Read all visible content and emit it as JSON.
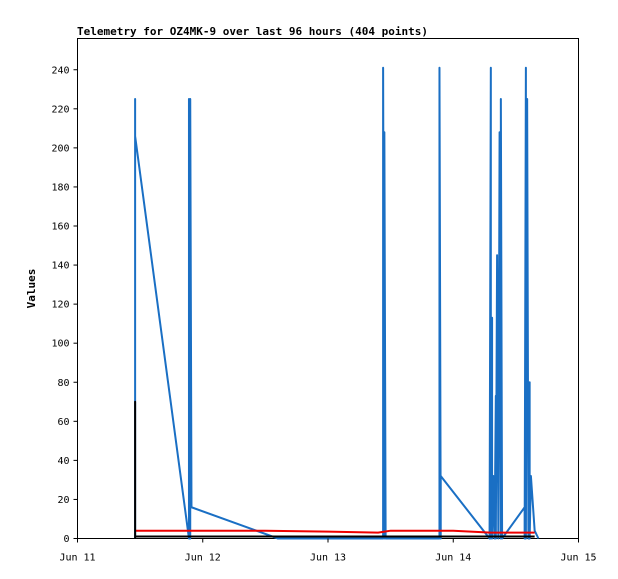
{
  "chart_data": {
    "type": "line",
    "title": "Telemetry for OZ4MK-9 over last 96 hours (404 points)",
    "xlabel": "",
    "ylabel": "Values",
    "x_axis": {
      "type": "time",
      "min": "Jun 11",
      "max": "Jun 15",
      "min_day": 11,
      "max_day": 15,
      "ticks": [
        "Jun 11",
        "Jun 12",
        "Jun 13",
        "Jun 14",
        "Jun 15"
      ]
    },
    "ylim": [
      0,
      256
    ],
    "yticks": [
      0,
      20,
      40,
      60,
      80,
      100,
      120,
      140,
      160,
      180,
      200,
      220,
      240
    ],
    "grid": false,
    "legend": "none",
    "series": [
      {
        "color": "#1a6fc4",
        "points": [
          [
            11.46,
            0
          ],
          [
            11.46,
            225
          ],
          [
            11.46,
            70
          ],
          [
            11.46,
            206
          ],
          [
            11.89,
            0
          ],
          [
            11.89,
            225
          ],
          [
            11.9,
            0
          ],
          [
            11.9,
            225
          ],
          [
            11.91,
            16
          ],
          [
            12.6,
            0
          ],
          [
            13.44,
            0
          ],
          [
            13.44,
            241
          ],
          [
            13.45,
            0
          ],
          [
            13.45,
            208
          ],
          [
            13.46,
            0
          ],
          [
            13.89,
            0
          ],
          [
            13.89,
            241
          ],
          [
            13.9,
            0
          ],
          [
            13.9,
            32
          ],
          [
            14.29,
            0
          ],
          [
            14.3,
            241
          ],
          [
            14.3,
            0
          ],
          [
            14.31,
            113
          ],
          [
            14.31,
            0
          ],
          [
            14.32,
            32
          ],
          [
            14.33,
            0
          ],
          [
            14.34,
            73
          ],
          [
            14.34,
            0
          ],
          [
            14.35,
            145
          ],
          [
            14.36,
            0
          ],
          [
            14.37,
            208
          ],
          [
            14.38,
            0
          ],
          [
            14.38,
            225
          ],
          [
            14.39,
            0
          ],
          [
            14.57,
            16
          ],
          [
            14.57,
            0
          ],
          [
            14.58,
            241
          ],
          [
            14.58,
            0
          ],
          [
            14.59,
            225
          ],
          [
            14.6,
            0
          ],
          [
            14.61,
            80
          ],
          [
            14.61,
            0
          ],
          [
            14.62,
            32
          ],
          [
            14.65,
            4
          ],
          [
            14.68,
            0
          ]
        ]
      },
      {
        "color": "#ee0000",
        "points": [
          [
            11.46,
            4
          ],
          [
            12.0,
            4
          ],
          [
            12.5,
            4
          ],
          [
            13.0,
            3.5
          ],
          [
            13.4,
            3
          ],
          [
            13.5,
            4
          ],
          [
            14.0,
            4
          ],
          [
            14.3,
            3
          ],
          [
            14.6,
            3
          ],
          [
            14.65,
            3
          ]
        ]
      },
      {
        "color": "#000000",
        "points": [
          [
            11.46,
            0
          ],
          [
            11.46,
            70
          ],
          [
            11.46,
            1
          ],
          [
            12.0,
            1
          ],
          [
            13.0,
            1
          ],
          [
            14.0,
            1
          ],
          [
            14.65,
            1
          ]
        ]
      }
    ]
  }
}
